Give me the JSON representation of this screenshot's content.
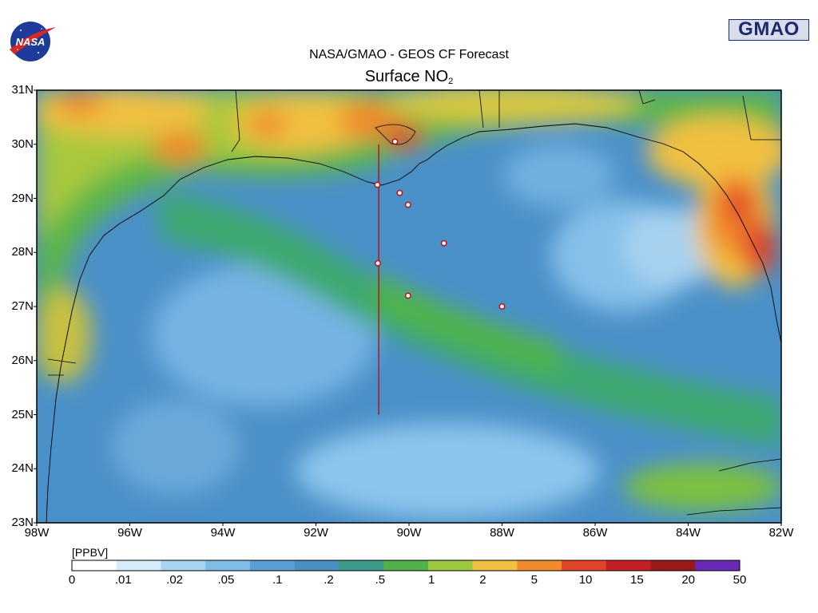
{
  "header": {
    "logo_left": "NASA",
    "logo_right": "GMAO",
    "title": "NASA/GMAO - GEOS CF Forecast",
    "subtitle_main": "Surface NO",
    "subtitle_sub": "2"
  },
  "map": {
    "lat_ticks": [
      "31N",
      "30N",
      "29N",
      "28N",
      "27N",
      "26N",
      "25N",
      "24N",
      "23N"
    ],
    "lon_ticks": [
      "98W",
      "96W",
      "94W",
      "92W",
      "90W",
      "88W",
      "86W",
      "84W",
      "82W"
    ],
    "extent": {
      "lon": [
        -98,
        -82
      ],
      "lat": [
        23,
        31
      ]
    },
    "transect_line": {
      "lon": -90.65,
      "lat_start": 25.0,
      "lat_end": 30.0,
      "color": "#cc0000"
    },
    "stations": [
      {
        "lon": -90.3,
        "lat": 30.05
      },
      {
        "lon": -90.68,
        "lat": 29.25
      },
      {
        "lon": -90.2,
        "lat": 29.1
      },
      {
        "lon": -90.02,
        "lat": 28.88
      },
      {
        "lon": -89.25,
        "lat": 28.17
      },
      {
        "lon": -90.67,
        "lat": 27.8
      },
      {
        "lon": -90.02,
        "lat": 27.2
      },
      {
        "lon": -88.0,
        "lat": 27.0
      }
    ]
  },
  "colorbar": {
    "units": "[PPBV]",
    "labels": [
      "0",
      ".01",
      ".02",
      ".05",
      ".1",
      ".2",
      ".5",
      "1",
      "2",
      "5",
      "10",
      "15",
      "20",
      "50"
    ],
    "colors": [
      "#ffffff",
      "#d6ecfa",
      "#a8d4f2",
      "#7fbce6",
      "#5a9fd4",
      "#4a8fc2",
      "#3e9a8a",
      "#52b04a",
      "#9cc940",
      "#f1c040",
      "#f08a2c",
      "#e0452a",
      "#c41f25",
      "#9a1a1a",
      "#6a2ab8"
    ]
  }
}
